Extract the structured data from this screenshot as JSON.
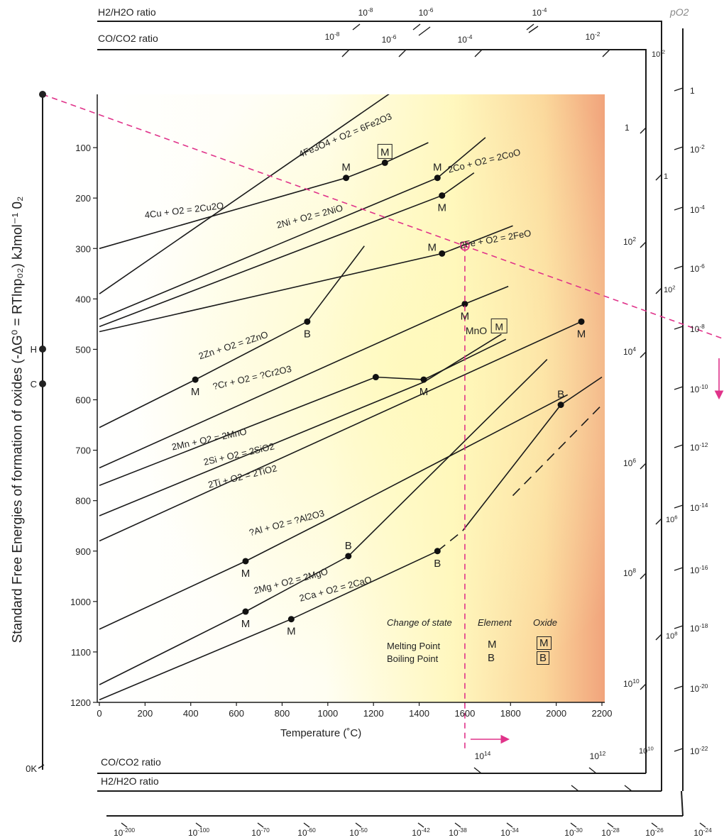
{
  "chart_data": {
    "type": "line",
    "title": "",
    "ylabel": "Standard Free Energies of formation of oxides (-ΔG⁰ = RTlnp₀₂) kJmol⁻¹ 0₂",
    "xlabel": "Temperature (˚C)",
    "xlim": [
      0,
      2200
    ],
    "ylim": [
      1200,
      0
    ],
    "x_ticks": [
      0,
      200,
      400,
      600,
      800,
      1000,
      1200,
      1400,
      1600,
      1800,
      2000,
      2200
    ],
    "y_ticks": [
      100,
      200,
      300,
      400,
      500,
      600,
      700,
      800,
      900,
      1000,
      1100,
      1200
    ],
    "series": [
      {
        "name": "4Fe3O4 + O2 = 6Fe2O3",
        "points": [
          [
            0,
            390
          ],
          [
            1280,
            -10
          ]
        ]
      },
      {
        "name": "4Cu + O2 = 2Cu2O",
        "points": [
          [
            0,
            300
          ],
          [
            1080,
            160
          ],
          [
            1250,
            130
          ],
          [
            1440,
            90
          ]
        ]
      },
      {
        "name": "2Co + O2 = 2CoO",
        "points": [
          [
            0,
            440
          ],
          [
            1480,
            160
          ],
          [
            1690,
            80
          ]
        ]
      },
      {
        "name": "2Ni + O2 = 2NiO",
        "points": [
          [
            0,
            455
          ],
          [
            1500,
            195
          ],
          [
            1640,
            150
          ]
        ]
      },
      {
        "name": "2Fe + O2 = 2FeO",
        "points": [
          [
            0,
            465
          ],
          [
            1500,
            310
          ],
          [
            1810,
            255
          ]
        ]
      },
      {
        "name": "2Zn + O2 = 2ZnO",
        "points": [
          [
            0,
            655
          ],
          [
            420,
            560
          ],
          [
            910,
            445
          ],
          [
            1160,
            295
          ]
        ]
      },
      {
        "name": "?Cr + O2 = ?Cr2O3",
        "points": [
          [
            0,
            735
          ],
          [
            1600,
            410
          ],
          [
            1790,
            375
          ]
        ]
      },
      {
        "name": "2Mn + O2 = 2MnO",
        "points": [
          [
            0,
            770
          ],
          [
            1210,
            555
          ],
          [
            1420,
            560
          ],
          [
            1780,
            480
          ]
        ]
      },
      {
        "name": "2Si + O2 = 2SiO2",
        "points": [
          [
            0,
            830
          ],
          [
            1420,
            565
          ],
          [
            1760,
            470
          ]
        ]
      },
      {
        "name": "2Ti + O2 = 2TiO2",
        "points": [
          [
            0,
            880
          ],
          [
            2110,
            445
          ]
        ]
      },
      {
        "name": "?Al + O2 = ?Al2O3",
        "points": [
          [
            0,
            1055
          ],
          [
            640,
            920
          ],
          [
            1010,
            835
          ],
          [
            2050,
            590
          ]
        ]
      },
      {
        "name": "2Mg + O2 = 2MgO",
        "points": [
          [
            0,
            1165
          ],
          [
            640,
            1020
          ],
          [
            1090,
            910
          ],
          [
            1960,
            520
          ]
        ]
      },
      {
        "name": "2Ca + O2 = 2CaO",
        "points": [
          [
            0,
            1195
          ],
          [
            840,
            1035
          ],
          [
            1480,
            900
          ]
        ]
      },
      {
        "name": "",
        "points": [
          [
            1480,
            900
          ],
          [
            1590,
            860
          ]
        ],
        "style": "dashed"
      },
      {
        "name": "",
        "points": [
          [
            1590,
            860
          ],
          [
            2020,
            610
          ],
          [
            2200,
            555
          ]
        ]
      },
      {
        "name": "",
        "points": [
          [
            1810,
            790
          ],
          [
            2200,
            610
          ]
        ],
        "style": "dashed"
      }
    ],
    "markers": [
      {
        "x": 1080,
        "y": 160,
        "label": "M",
        "boxed": false
      },
      {
        "x": 1250,
        "y": 130,
        "label": "M",
        "boxed": true
      },
      {
        "x": 1480,
        "y": 160,
        "label": "M",
        "boxed": false
      },
      {
        "x": 1500,
        "y": 195,
        "label": "M",
        "boxed": false
      },
      {
        "x": 1500,
        "y": 310,
        "label": "M",
        "boxed": false
      },
      {
        "x": 1600,
        "y": 410,
        "label": "M",
        "boxed": false
      },
      {
        "x": 910,
        "y": 445,
        "label": "B",
        "boxed": false
      },
      {
        "x": 2110,
        "y": 445,
        "label": "M",
        "boxed": false
      },
      {
        "x": 420,
        "y": 560,
        "label": "M",
        "boxed": false
      },
      {
        "x": 1210,
        "y": 555,
        "label": "",
        "boxed": false
      },
      {
        "x": 1420,
        "y": 560,
        "label": "M",
        "boxed": false
      },
      {
        "x": 2020,
        "y": 610,
        "label": "B",
        "boxed": false
      },
      {
        "x": 640,
        "y": 920,
        "label": "M",
        "boxed": false
      },
      {
        "x": 1090,
        "y": 910,
        "label": "B",
        "boxed": false
      },
      {
        "x": 1480,
        "y": 900,
        "label": "B",
        "boxed": false
      },
      {
        "x": 640,
        "y": 1020,
        "label": "M",
        "boxed": false
      },
      {
        "x": 840,
        "y": 1035,
        "label": "M",
        "boxed": false
      }
    ],
    "annotations": [
      {
        "text": "MnO",
        "x": 1650,
        "y": 470
      },
      {
        "text": "M",
        "x": 1750,
        "y": 462,
        "boxed": true
      }
    ],
    "pO2_line": {
      "from_label": "0K",
      "through": [
        1600,
        295
      ],
      "color": "#e0338a",
      "style": "dashed"
    },
    "temperature_marker": {
      "x": 1600,
      "color": "#e0338a",
      "style": "dashed"
    }
  },
  "top_scales": {
    "h2_label": "H2/H2O ratio",
    "h2_ticks": [
      "10-8",
      "10-6",
      "10-4"
    ],
    "co_label": "CO/CO2 ratio",
    "co_ticks": [
      "10-8",
      "10-6",
      "10-4",
      "10-2"
    ]
  },
  "bottom_scales": {
    "co_label": "CO/CO2 ratio",
    "co_ticks": [
      "1014",
      "1012"
    ],
    "h2_label": "H2/H2O ratio",
    "po2_ticks": [
      "10-200",
      "10-100",
      "10-70",
      "10-60",
      "10-50",
      "10-42",
      "10-38",
      "10-34",
      "10-30",
      "10-28",
      "10-26",
      "10-24"
    ]
  },
  "right_scales": {
    "title": "pO2",
    "pO2_ticks": [
      "1",
      "10-2",
      "10-4",
      "10-6",
      "10-8",
      "10-10",
      "10-12",
      "10-14",
      "10-16",
      "10-18",
      "10-20",
      "10-22"
    ],
    "co_ticks": [
      "1",
      "102",
      "104",
      "106",
      "108",
      "1010"
    ],
    "h2_ticks": [
      "10-2",
      "1",
      "102",
      "106",
      "108",
      "1010"
    ]
  },
  "left_scale": {
    "labels": [
      "H",
      "C",
      "0K"
    ]
  },
  "legend": {
    "title_change": "Change of state",
    "title_element": "Element",
    "title_oxide": "Oxide",
    "melting": "Melting Point",
    "boiling": "Boiling Point",
    "m": "M",
    "b": "B"
  },
  "colors": {
    "accent": "#e0338a",
    "line": "#1a1a1a",
    "bg_left": "#ffffff",
    "bg_mid": "#fffbcc",
    "bg_right": "#f0a27a"
  }
}
